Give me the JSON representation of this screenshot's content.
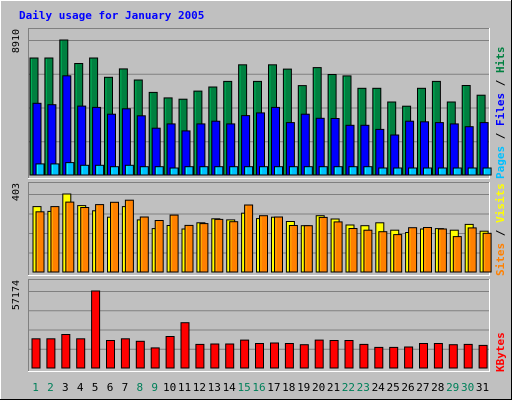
{
  "chart_data": [
    {
      "type": "bar",
      "title": "Daily usage for January 2005",
      "categories": [
        "1",
        "2",
        "3",
        "4",
        "5",
        "6",
        "7",
        "8",
        "9",
        "10",
        "11",
        "12",
        "13",
        "14",
        "15",
        "16",
        "17",
        "18",
        "19",
        "20",
        "21",
        "22",
        "23",
        "24",
        "25",
        "26",
        "27",
        "28",
        "29",
        "30",
        "31"
      ],
      "weekend_days": [
        "1",
        "2",
        "8",
        "9",
        "15",
        "16",
        "22",
        "23",
        "29",
        "30"
      ],
      "ytick": "8910",
      "ylim": [
        0,
        8910
      ],
      "legend": [
        {
          "label": "Pages",
          "color": "#00c0ff"
        },
        {
          "label": "/",
          "color": "#000000"
        },
        {
          "label": "Files",
          "color": "#0000ff"
        },
        {
          "label": "/",
          "color": "#000000"
        },
        {
          "label": "Hits",
          "color": "#008040"
        }
      ],
      "series": [
        {
          "name": "Hits",
          "color": "#008040",
          "values": [
            7720,
            7720,
            8910,
            7360,
            7720,
            6450,
            7000,
            6270,
            5450,
            5090,
            5000,
            5540,
            5810,
            6180,
            7270,
            6180,
            7270,
            6990,
            5900,
            7090,
            6630,
            6540,
            5720,
            5720,
            4820,
            4540,
            5720,
            6180,
            4820,
            5910,
            5270
          ]
        },
        {
          "name": "Files",
          "color": "#0000ff",
          "values": [
            4730,
            4640,
            6550,
            4550,
            4460,
            4010,
            4370,
            3910,
            3090,
            3370,
            2910,
            3370,
            3550,
            3370,
            3920,
            4100,
            4460,
            3460,
            4010,
            3740,
            3730,
            3280,
            3280,
            3010,
            2640,
            3550,
            3510,
            3460,
            3370,
            3190,
            3460
          ]
        },
        {
          "name": "Pages",
          "color": "#00c0ff",
          "values": [
            730,
            730,
            820,
            640,
            640,
            550,
            640,
            550,
            550,
            460,
            550,
            550,
            550,
            550,
            550,
            550,
            550,
            550,
            550,
            550,
            550,
            550,
            550,
            460,
            460,
            460,
            460,
            460,
            460,
            460,
            460
          ]
        }
      ]
    },
    {
      "type": "bar",
      "categories": [
        "1",
        "2",
        "3",
        "4",
        "5",
        "6",
        "7",
        "8",
        "9",
        "10",
        "11",
        "12",
        "13",
        "14",
        "15",
        "16",
        "17",
        "18",
        "19",
        "20",
        "21",
        "22",
        "23",
        "24",
        "25",
        "26",
        "27",
        "28",
        "29",
        "30",
        "31"
      ],
      "ytick": "403",
      "ylim": [
        0,
        403
      ],
      "legend": [
        {
          "label": "Sites",
          "color": "#ff8000"
        },
        {
          "label": "/",
          "color": "#000000"
        },
        {
          "label": "Visits",
          "color": "#ffff00"
        }
      ],
      "series": [
        {
          "name": "Visits",
          "color": "#ffff00",
          "values": [
            338,
            313,
            403,
            343,
            316,
            283,
            338,
            269,
            224,
            240,
            222,
            254,
            275,
            269,
            304,
            276,
            283,
            261,
            239,
            291,
            274,
            243,
            239,
            254,
            216,
            204,
            222,
            224,
            216,
            246,
            211
          ]
        },
        {
          "name": "Sites",
          "color": "#ff8000",
          "values": [
            311,
            338,
            361,
            333,
            348,
            360,
            371,
            284,
            266,
            294,
            241,
            250,
            272,
            260,
            346,
            291,
            284,
            240,
            239,
            282,
            259,
            225,
            216,
            208,
            193,
            229,
            230,
            222,
            183,
            228,
            200
          ]
        }
      ]
    },
    {
      "type": "bar",
      "categories": [
        "1",
        "2",
        "3",
        "4",
        "5",
        "6",
        "7",
        "8",
        "9",
        "10",
        "11",
        "12",
        "13",
        "14",
        "15",
        "16",
        "17",
        "18",
        "19",
        "20",
        "21",
        "22",
        "23",
        "24",
        "25",
        "26",
        "27",
        "28",
        "29",
        "30",
        "31"
      ],
      "ytick": "57174",
      "ylim": [
        0,
        57174
      ],
      "legend": [
        {
          "label": "KBytes",
          "color": "#ff0000"
        }
      ],
      "series": [
        {
          "name": "KBytes",
          "color": "#ff0000",
          "values": [
            21700,
            21700,
            24900,
            21700,
            57174,
            20400,
            21700,
            19800,
            14900,
            23400,
            33600,
            17500,
            17800,
            17800,
            20700,
            18200,
            18600,
            18200,
            17300,
            20700,
            20400,
            20400,
            17500,
            15300,
            15300,
            15600,
            18200,
            18200,
            17300,
            17500,
            16800
          ]
        }
      ]
    }
  ]
}
